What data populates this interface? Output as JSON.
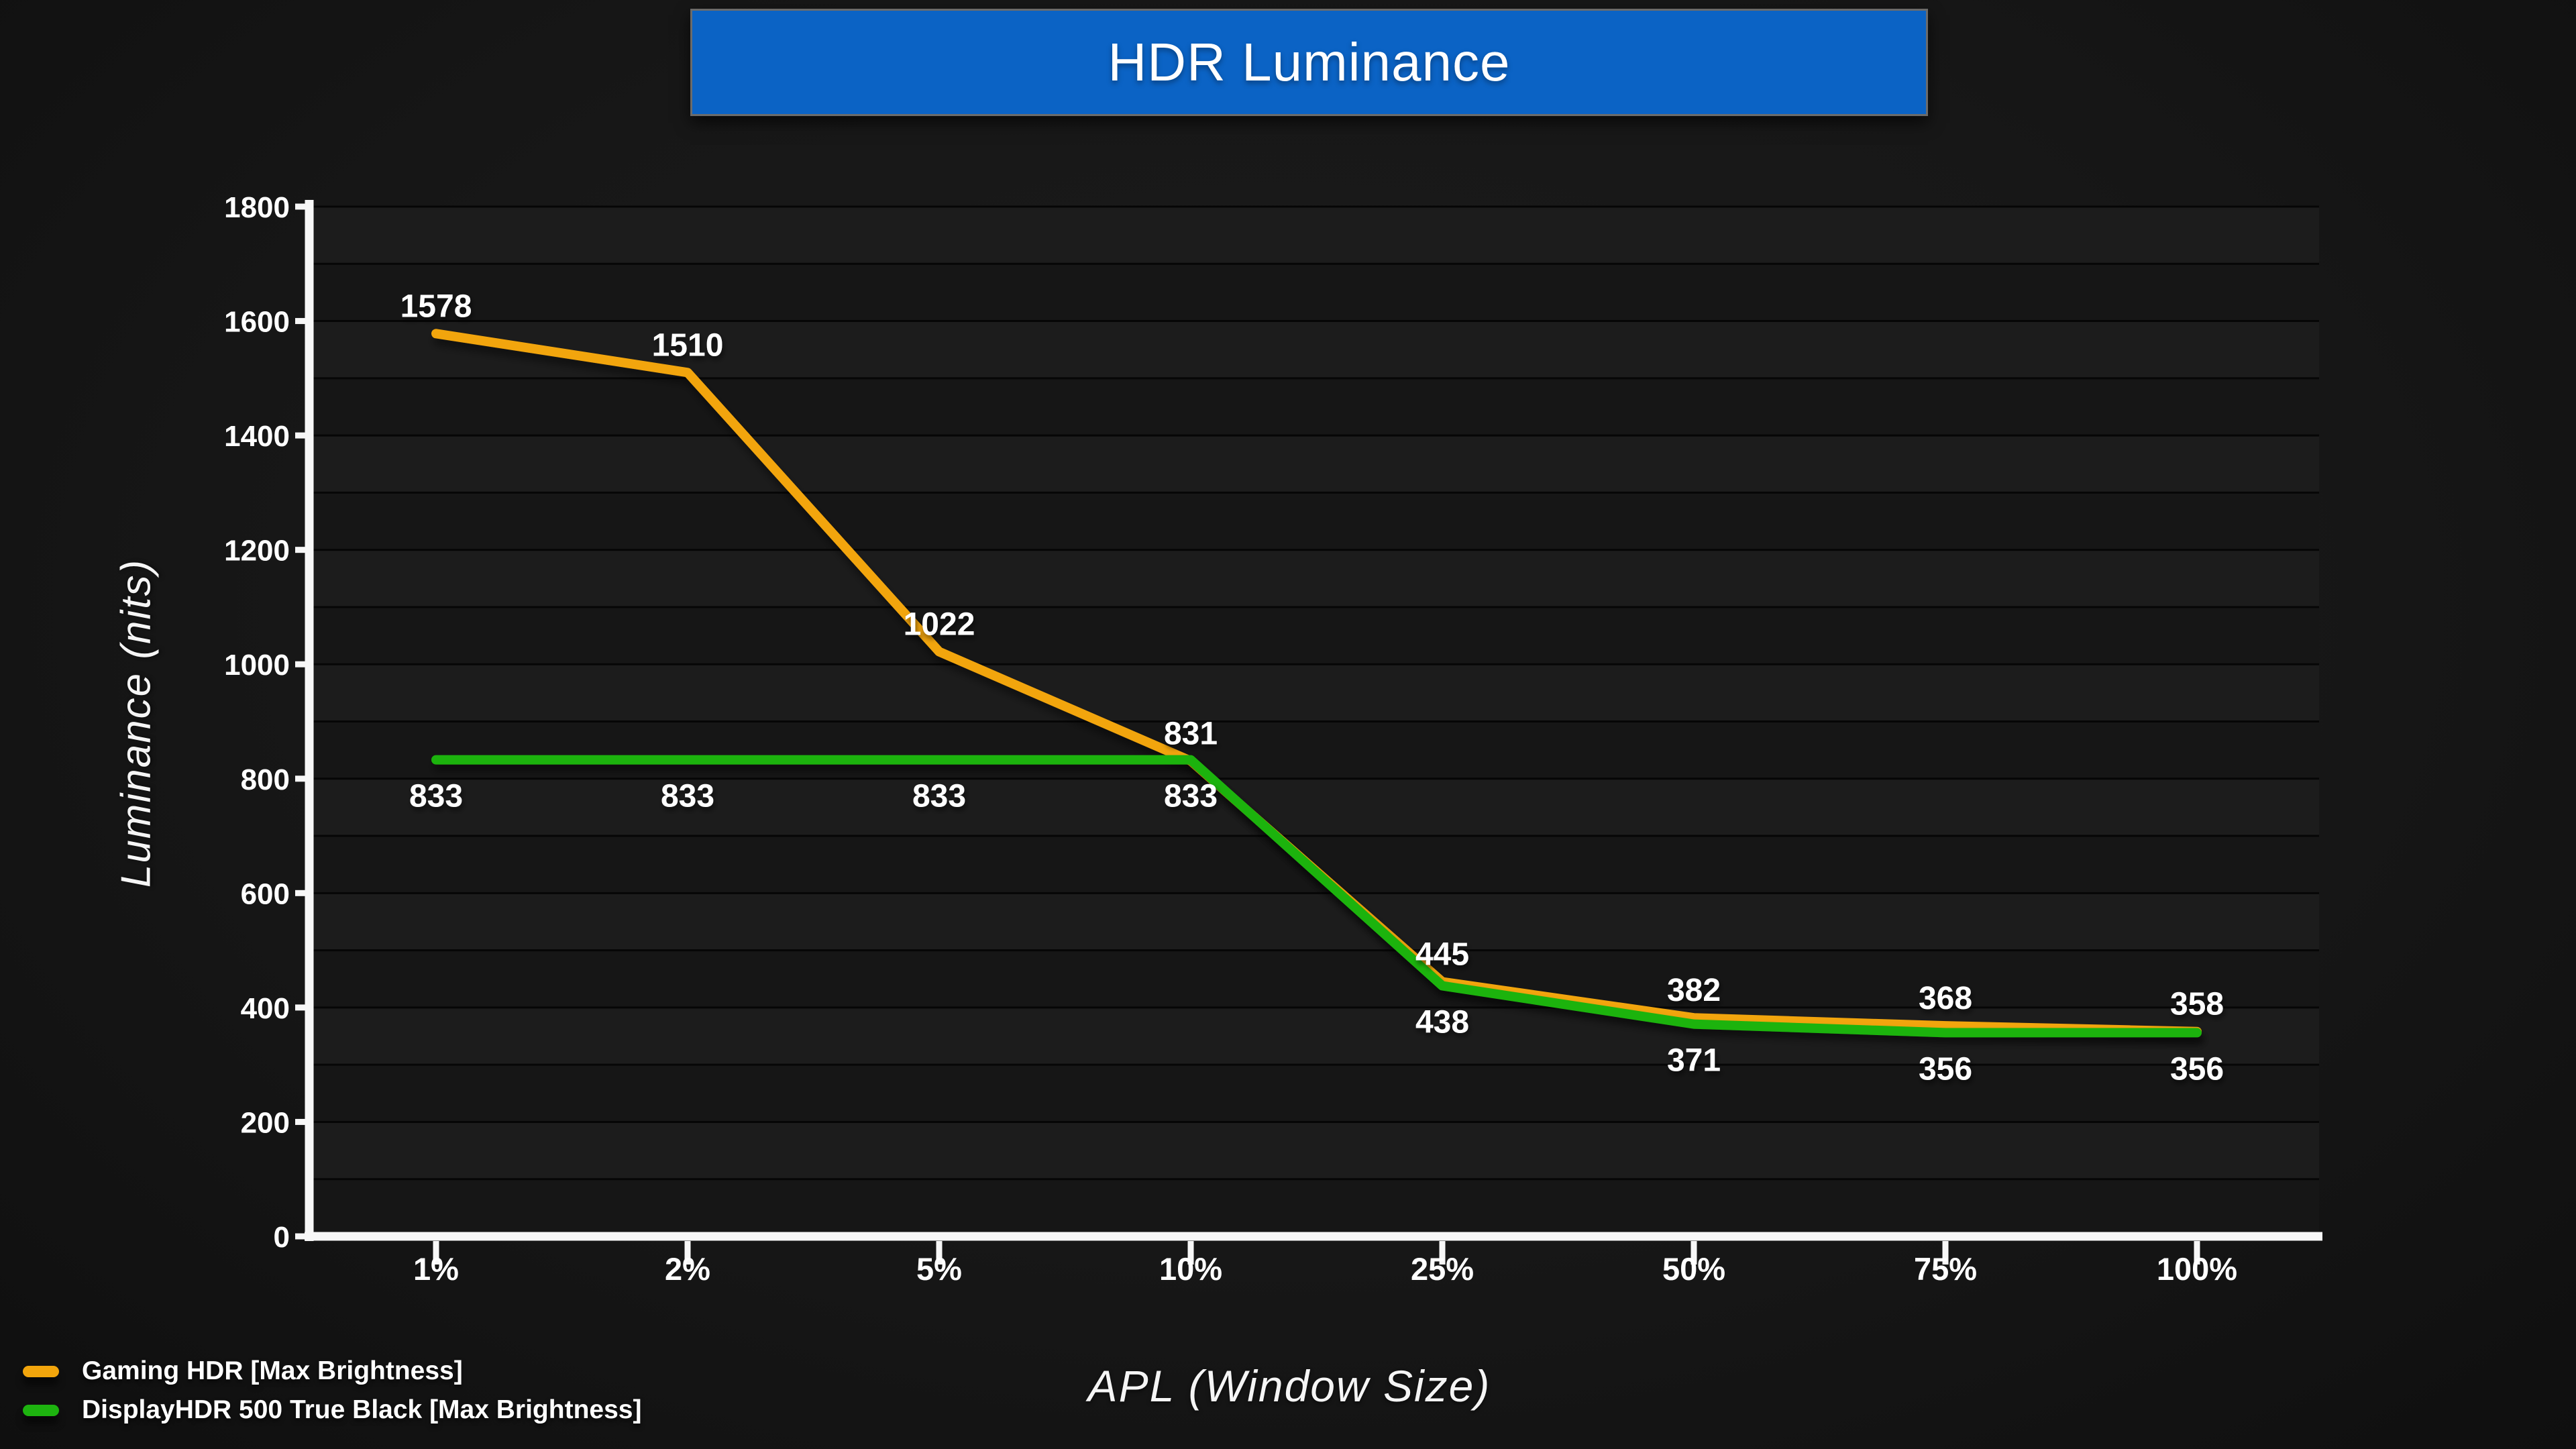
{
  "title": "HDR Luminance",
  "legend": [
    {
      "label": "Gaming HDR [Max Brightness]",
      "color": "#F2A50C"
    },
    {
      "label": "DisplayHDR 500 True Black [Max Brightness]",
      "color": "#1DB30F"
    }
  ],
  "chart_data": {
    "type": "line",
    "title": "HDR Luminance",
    "xlabel": "APL (Window Size)",
    "ylabel": "Luminance (nits)",
    "categories": [
      "1%",
      "2%",
      "5%",
      "10%",
      "25%",
      "50%",
      "75%",
      "100%"
    ],
    "series": [
      {
        "name": "Gaming HDR [Max Brightness]",
        "color": "#F2A50C",
        "values": [
          1578,
          1510,
          1022,
          831,
          445,
          382,
          368,
          358
        ],
        "label_position": "above"
      },
      {
        "name": "DisplayHDR 500 True Black [Max Brightness]",
        "color": "#1DB30F",
        "values": [
          833,
          833,
          833,
          833,
          438,
          371,
          356,
          356
        ],
        "label_position": "below"
      }
    ],
    "ylim": [
      0,
      1800
    ],
    "yticks": [
      0,
      200,
      400,
      600,
      800,
      1000,
      1200,
      1400,
      1600,
      1800
    ],
    "grid_step": 100,
    "grid": true,
    "legend_position": "bottom-left",
    "colors": {
      "background": "#171717",
      "plot_band_light": "#1c1c1c",
      "plot_band_dark": "#161616",
      "gridline": "#060606",
      "axis": "#f7f7f7",
      "title_box_fill": "#0b63c5",
      "title_box_border": "#6b6b6b",
      "text": "#ffffff"
    }
  }
}
